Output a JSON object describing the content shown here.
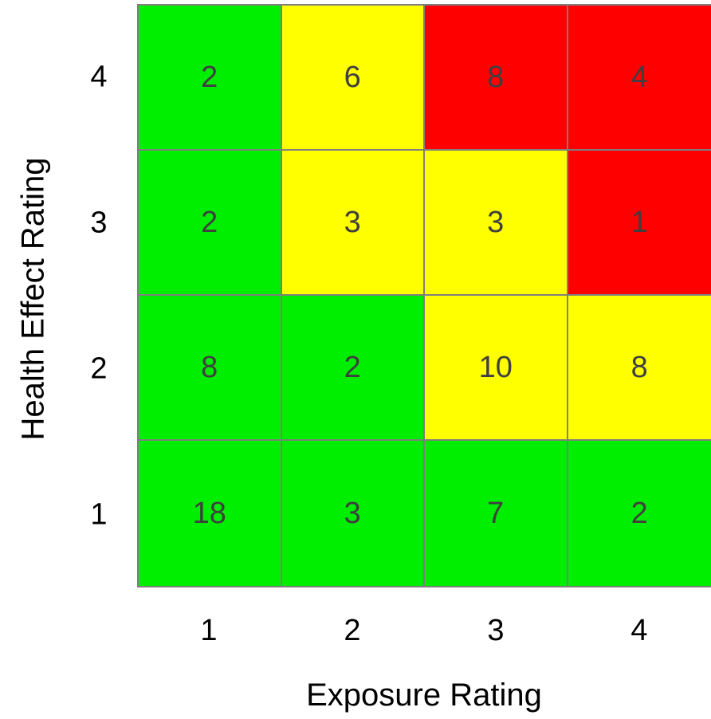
{
  "chart_data": {
    "type": "heatmap",
    "title": "",
    "xlabel": "Exposure Rating",
    "ylabel": "Health Effect Rating",
    "x_categories": [
      "1",
      "2",
      "3",
      "4"
    ],
    "y_categories": [
      "4",
      "3",
      "2",
      "1"
    ],
    "values": [
      [
        2,
        6,
        8,
        4
      ],
      [
        2,
        3,
        3,
        1
      ],
      [
        8,
        2,
        10,
        8
      ],
      [
        18,
        3,
        7,
        2
      ]
    ],
    "cell_colors": [
      [
        "#00ee00",
        "#ffff00",
        "#ff0000",
        "#ff0000"
      ],
      [
        "#00ee00",
        "#ffff00",
        "#ffff00",
        "#ff0000"
      ],
      [
        "#00ee00",
        "#00ee00",
        "#ffff00",
        "#ffff00"
      ],
      [
        "#00ee00",
        "#00ee00",
        "#00ee00",
        "#00ee00"
      ]
    ],
    "grid": true,
    "legend": "none"
  }
}
